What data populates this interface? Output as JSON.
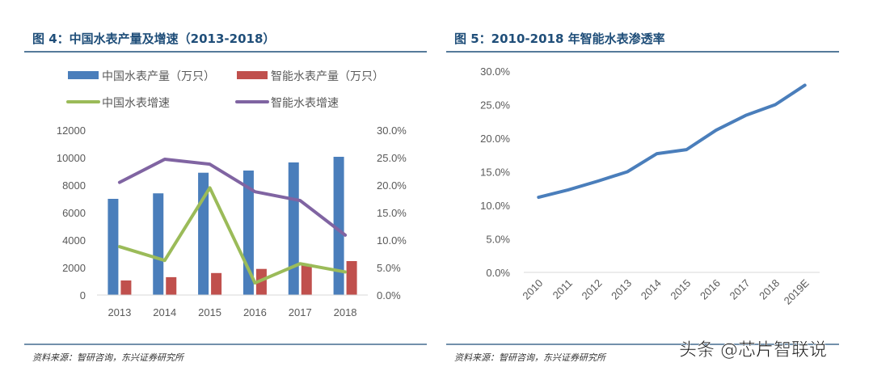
{
  "chart_data": [
    {
      "type": "bar-line combo",
      "title": "图 4：中国水表产量及增速（2013-2018）",
      "categories": [
        "2013",
        "2014",
        "2015",
        "2016",
        "2017",
        "2018"
      ],
      "y_left": {
        "range": [
          0,
          12000
        ],
        "ticks": [
          "0",
          "2000",
          "4000",
          "6000",
          "8000",
          "10000",
          "12000"
        ]
      },
      "y_right": {
        "range": [
          0,
          30
        ],
        "ticks": [
          "0.0%",
          "5.0%",
          "10.0%",
          "15.0%",
          "20.0%",
          "25.0%",
          "30.0%"
        ]
      },
      "legend_position": "top",
      "grid": false,
      "series": [
        {
          "name": "中国水表产量（万只）",
          "kind": "bar",
          "axis": "left",
          "color": "#4a7ebb",
          "values": [
            7000,
            7400,
            8900,
            9060,
            9650,
            10060
          ]
        },
        {
          "name": "智能水表产量（万只）",
          "kind": "bar",
          "axis": "left",
          "color": "#c0504d",
          "values": [
            1060,
            1300,
            1600,
            1900,
            2250,
            2470
          ]
        },
        {
          "name": "中国水表增速",
          "kind": "line",
          "axis": "right",
          "color": "#9bbb59",
          "values": [
            8.8,
            6.3,
            19.5,
            2.2,
            5.7,
            4.2
          ]
        },
        {
          "name": "智能水表增速",
          "kind": "line",
          "axis": "right",
          "color": "#8064a2",
          "values": [
            20.5,
            24.7,
            23.8,
            18.8,
            17.2,
            10.9
          ]
        }
      ],
      "source": "资料来源：智研咨询，东兴证券研究所"
    },
    {
      "type": "line",
      "title": "图 5：2010-2018 年智能水表渗透率",
      "categories": [
        "2010",
        "2011",
        "2012",
        "2013",
        "2014",
        "2015",
        "2016",
        "2017",
        "2018",
        "2019E"
      ],
      "y": {
        "range": [
          0,
          30
        ],
        "ticks": [
          "0.0%",
          "5.0%",
          "10.0%",
          "15.0%",
          "20.0%",
          "25.0%",
          "30.0%"
        ]
      },
      "grid": false,
      "series": [
        {
          "color": "#4a7ebb",
          "values": [
            11.2,
            12.3,
            13.6,
            15.0,
            17.7,
            18.3,
            21.2,
            23.4,
            25.0,
            27.9
          ]
        }
      ],
      "source": "资料来源：智研咨询，东兴证券研究所"
    }
  ],
  "watermark": "头条 @芯片智联说",
  "colors": {
    "title": "#1f4e79",
    "rule": "#1f4e79",
    "axis": "#d9d9d9"
  }
}
